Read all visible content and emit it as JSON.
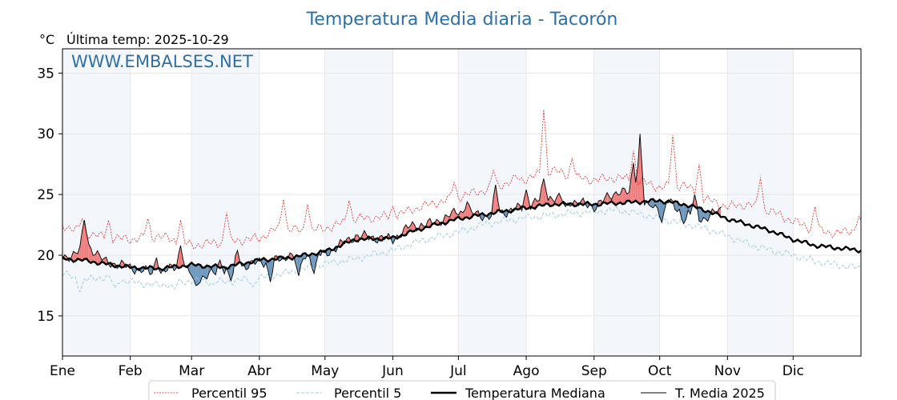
{
  "chart_data": {
    "type": "line",
    "title": "Temperatura Media diaria - Tacorón",
    "unit_label": "°C",
    "last_temp_label": "Última temp: 2025-10-29",
    "watermark": "WWW.EMBALSES.NET",
    "ylim": [
      11.7,
      37
    ],
    "yticks": [
      15,
      20,
      25,
      30,
      35
    ],
    "xlim": [
      1,
      366
    ],
    "months": [
      {
        "label": "Ene",
        "day": 1
      },
      {
        "label": "Feb",
        "day": 32
      },
      {
        "label": "Mar",
        "day": 60
      },
      {
        "label": "Abr",
        "day": 91
      },
      {
        "label": "May",
        "day": 121
      },
      {
        "label": "Jun",
        "day": 152
      },
      {
        "label": "Jul",
        "day": 182
      },
      {
        "label": "Ago",
        "day": 213
      },
      {
        "label": "Sep",
        "day": 244
      },
      {
        "label": "Oct",
        "day": 274
      },
      {
        "label": "Nov",
        "day": 305
      },
      {
        "label": "Dic",
        "day": 335
      }
    ],
    "shaded_months": [
      "Ene",
      "Mar",
      "May",
      "Jul",
      "Sep",
      "Nov"
    ],
    "series": [
      {
        "name": "Percentil 95",
        "style": "dotted",
        "color": "#e8231c",
        "anchors": [
          [
            1,
            22.5
          ],
          [
            10,
            21.9
          ],
          [
            20,
            21.5
          ],
          [
            32,
            21.3
          ],
          [
            45,
            21.6
          ],
          [
            60,
            20.8
          ],
          [
            75,
            21.1
          ],
          [
            91,
            21.4
          ],
          [
            100,
            22.3
          ],
          [
            110,
            22.0
          ],
          [
            121,
            22.2
          ],
          [
            135,
            23.0
          ],
          [
            152,
            23.2
          ],
          [
            165,
            24.0
          ],
          [
            182,
            24.8
          ],
          [
            195,
            25.4
          ],
          [
            205,
            26.0
          ],
          [
            213,
            26.3
          ],
          [
            225,
            27.0
          ],
          [
            235,
            26.4
          ],
          [
            244,
            26.2
          ],
          [
            255,
            26.4
          ],
          [
            265,
            26.1
          ],
          [
            274,
            25.6
          ],
          [
            285,
            25.8
          ],
          [
            295,
            24.6
          ],
          [
            305,
            24.0
          ],
          [
            315,
            24.2
          ],
          [
            325,
            23.6
          ],
          [
            335,
            22.8
          ],
          [
            345,
            22.1
          ],
          [
            355,
            21.8
          ],
          [
            366,
            22.2
          ]
        ],
        "spikes": [
          [
            10,
            23.0
          ],
          [
            22,
            22.9
          ],
          [
            40,
            23.0
          ],
          [
            55,
            22.9
          ],
          [
            76,
            23.5
          ],
          [
            102,
            24.6
          ],
          [
            113,
            24.2
          ],
          [
            132,
            24.5
          ],
          [
            152,
            24.0
          ],
          [
            180,
            26.0
          ],
          [
            198,
            27.0
          ],
          [
            208,
            26.6
          ],
          [
            221,
            32.0
          ],
          [
            234,
            28.0
          ],
          [
            262,
            28.6
          ],
          [
            280,
            29.9
          ],
          [
            292,
            27.5
          ],
          [
            320,
            26.4
          ],
          [
            345,
            24.0
          ],
          [
            365,
            23.2
          ]
        ]
      },
      {
        "name": "Percentil 5",
        "style": "dashed",
        "color": "#9fcfde",
        "anchors": [
          [
            1,
            18.5
          ],
          [
            10,
            17.9
          ],
          [
            20,
            18.2
          ],
          [
            32,
            17.8
          ],
          [
            45,
            17.5
          ],
          [
            60,
            17.9
          ],
          [
            75,
            17.8
          ],
          [
            91,
            18.1
          ],
          [
            105,
            18.6
          ],
          [
            121,
            19.3
          ],
          [
            135,
            19.7
          ],
          [
            152,
            20.4
          ],
          [
            165,
            21.2
          ],
          [
            182,
            21.9
          ],
          [
            195,
            22.6
          ],
          [
            213,
            23.1
          ],
          [
            225,
            23.3
          ],
          [
            244,
            23.6
          ],
          [
            255,
            23.7
          ],
          [
            265,
            23.4
          ],
          [
            274,
            23.0
          ],
          [
            285,
            22.6
          ],
          [
            295,
            22.2
          ],
          [
            305,
            21.6
          ],
          [
            315,
            20.9
          ],
          [
            325,
            20.4
          ],
          [
            335,
            20.0
          ],
          [
            345,
            19.5
          ],
          [
            355,
            19.2
          ],
          [
            366,
            18.9
          ]
        ],
        "spikes": [
          [
            9,
            17.0
          ],
          [
            25,
            17.3
          ],
          [
            52,
            17.2
          ],
          [
            70,
            17.6
          ],
          [
            88,
            17.4
          ]
        ]
      },
      {
        "name": "Temperatura Mediana",
        "style": "thick",
        "color": "#000000",
        "anchors": [
          [
            1,
            19.7
          ],
          [
            10,
            19.6
          ],
          [
            20,
            19.3
          ],
          [
            32,
            19.0
          ],
          [
            45,
            18.9
          ],
          [
            60,
            19.2
          ],
          [
            75,
            19.0
          ],
          [
            91,
            19.6
          ],
          [
            105,
            19.8
          ],
          [
            121,
            20.3
          ],
          [
            135,
            21.3
          ],
          [
            152,
            21.4
          ],
          [
            165,
            22.2
          ],
          [
            182,
            23.0
          ],
          [
            195,
            23.4
          ],
          [
            213,
            23.9
          ],
          [
            225,
            24.2
          ],
          [
            244,
            24.2
          ],
          [
            255,
            24.3
          ],
          [
            265,
            24.4
          ],
          [
            274,
            24.5
          ],
          [
            285,
            24.2
          ],
          [
            295,
            23.7
          ],
          [
            305,
            23.0
          ],
          [
            315,
            22.5
          ],
          [
            325,
            22.0
          ],
          [
            335,
            21.3
          ],
          [
            345,
            20.8
          ],
          [
            355,
            20.6
          ],
          [
            366,
            20.4
          ]
        ],
        "spikes": []
      },
      {
        "name": "T. Media 2025",
        "style": "thin",
        "color": "#000000",
        "anchors": [
          [
            1,
            19.7
          ],
          [
            8,
            20.3
          ],
          [
            12,
            21.0
          ],
          [
            20,
            19.5
          ],
          [
            30,
            19.1
          ],
          [
            45,
            18.4
          ],
          [
            55,
            19.3
          ],
          [
            62,
            18.0
          ],
          [
            75,
            18.8
          ],
          [
            91,
            19.4
          ],
          [
            100,
            19.6
          ],
          [
            121,
            20.1
          ],
          [
            135,
            21.6
          ],
          [
            152,
            21.3
          ],
          [
            160,
            22.4
          ],
          [
            170,
            22.6
          ],
          [
            182,
            23.6
          ],
          [
            195,
            23.2
          ],
          [
            213,
            24.0
          ],
          [
            222,
            24.8
          ],
          [
            230,
            24.6
          ],
          [
            244,
            24.0
          ],
          [
            255,
            25.3
          ],
          [
            262,
            25.0
          ],
          [
            270,
            23.8
          ],
          [
            278,
            24.4
          ],
          [
            285,
            23.4
          ],
          [
            295,
            23.0
          ],
          [
            302,
            23.8
          ]
        ],
        "spikes": [
          [
            11,
            22.9
          ],
          [
            44,
            19.8
          ],
          [
            55,
            20.8
          ],
          [
            62,
            17.5
          ],
          [
            73,
            19.6
          ],
          [
            78,
            17.9
          ],
          [
            81,
            20.4
          ],
          [
            96,
            17.8
          ],
          [
            105,
            20.2
          ],
          [
            109,
            18.3
          ],
          [
            116,
            18.5
          ],
          [
            186,
            24.4
          ],
          [
            199,
            25.8
          ],
          [
            213,
            25.4
          ],
          [
            221,
            26.3
          ],
          [
            231,
            24.0
          ],
          [
            262,
            27.6
          ],
          [
            265,
            30.0
          ],
          [
            270,
            24.0
          ],
          [
            275,
            22.7
          ],
          [
            285,
            22.6
          ],
          [
            290,
            25.0
          ]
        ]
      }
    ]
  },
  "legend": [
    {
      "label": "Percentil 95",
      "style": "dotted",
      "color": "#e8231c"
    },
    {
      "label": "Percentil 5",
      "style": "dashed",
      "color": "#9fcfde"
    },
    {
      "label": "Temperatura Mediana",
      "style": "thick",
      "color": "#000000"
    },
    {
      "label": "T. Media 2025",
      "style": "thin",
      "color": "#000000"
    }
  ],
  "colors": {
    "above_fill": "#f08080",
    "below_fill": "#6f98bf",
    "month_shade": "#f3f7fc",
    "grid": "#e6e6e6"
  }
}
